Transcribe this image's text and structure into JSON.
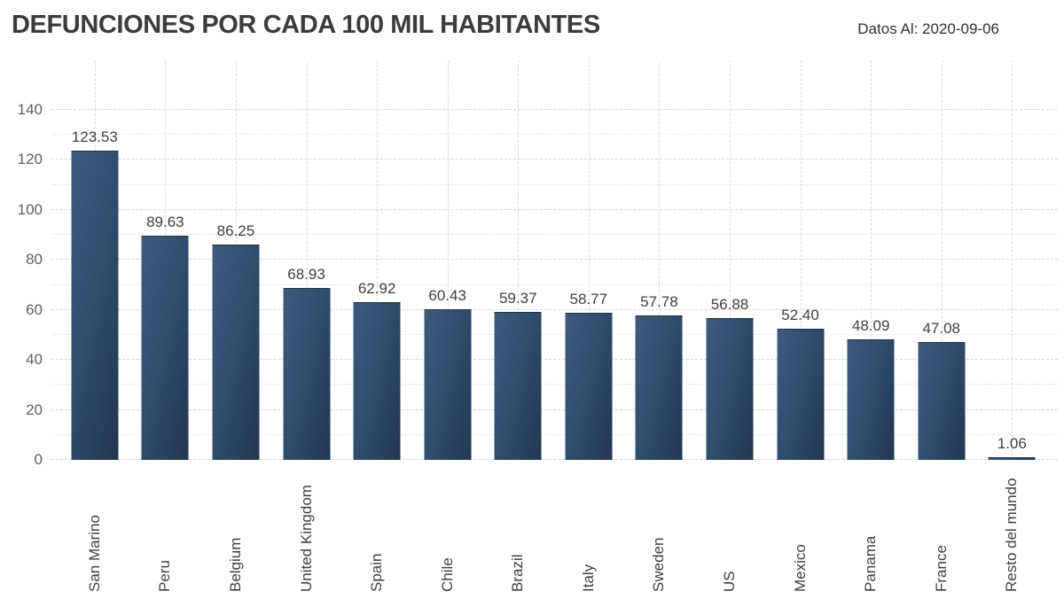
{
  "header": {
    "title": "DEFUNCIONES POR CADA 100 MIL HABITANTES",
    "date_label": "Datos Al: 2020-09-06"
  },
  "chart_data": {
    "type": "bar",
    "title": "DEFUNCIONES POR CADA 100 MIL HABITANTES",
    "subtitle": "Datos Al: 2020-09-06",
    "categories": [
      "San Marino",
      "Peru",
      "Belgium",
      "United Kingdom",
      "Spain",
      "Chile",
      "Brazil",
      "Italy",
      "Sweden",
      "US",
      "Mexico",
      "Panama",
      "France",
      "Resto del mundo"
    ],
    "values": [
      123.53,
      89.63,
      86.25,
      68.93,
      62.92,
      60.43,
      59.37,
      58.77,
      57.78,
      56.88,
      52.4,
      48.09,
      47.08,
      1.06
    ],
    "value_labels": [
      "123.53",
      "89.63",
      "86.25",
      "68.93",
      "62.92",
      "60.43",
      "59.37",
      "58.77",
      "57.78",
      "56.88",
      "52.40",
      "48.09",
      "47.08",
      "1.06"
    ],
    "xlabel": "",
    "ylabel": "",
    "ylim": [
      0,
      160
    ],
    "yticks": [
      0,
      20,
      40,
      60,
      80,
      100,
      120,
      140
    ],
    "grid": "horizontal major dashed every 20, minor dotted every 10, vertical dashed at each bar center",
    "legend": "none"
  },
  "colors": {
    "bar_gradient_light": "#3d5b7d",
    "bar_gradient_mid": "#2f4d6d",
    "bar_gradient_dark": "#233751",
    "gridline_major": "#d6d6d6",
    "gridline_minor": "#e0e0e0",
    "title_text": "#3b3b3b",
    "axis_text": "#5f5f5f",
    "label_text": "#3e3e3e",
    "background": "#ffffff"
  }
}
